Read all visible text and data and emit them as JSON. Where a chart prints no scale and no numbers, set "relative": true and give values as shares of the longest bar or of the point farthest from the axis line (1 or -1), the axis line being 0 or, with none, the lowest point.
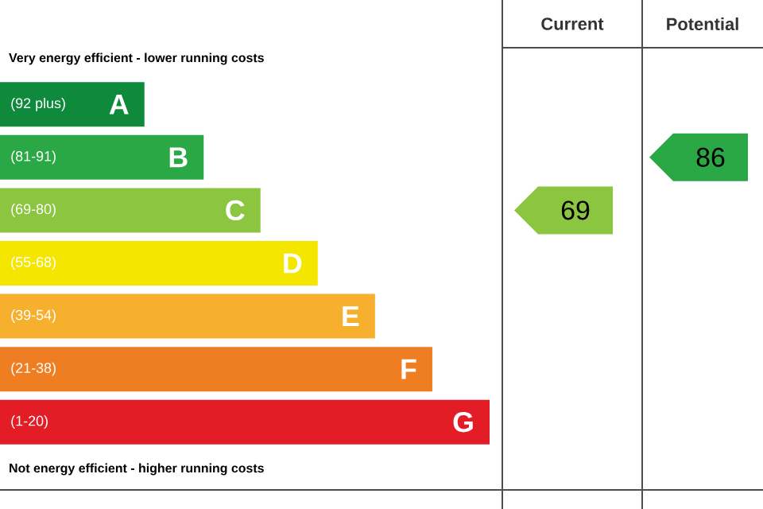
{
  "chart_data": {
    "type": "bar",
    "orientation": "horizontal",
    "relative": true,
    "categories": [
      "A",
      "B",
      "C",
      "D",
      "E",
      "F",
      "G"
    ],
    "values": [
      0.295,
      0.416,
      0.532,
      0.649,
      0.766,
      0.883,
      1
    ],
    "colors": [
      "#0f8a3c",
      "#2aa845",
      "#8cc540",
      "#f5e600",
      "#f7b02d",
      "#ef7d22",
      "#e31d25"
    ],
    "annotations": [
      "Very energy efficient - lower running costs",
      "Not energy efficient - higher running costs",
      "Current",
      "Potential",
      "(92 plus)",
      "(81-91)",
      "(69-80)",
      "(55-68)",
      "(39-54)",
      "(21-38)",
      "(1-20)",
      "69",
      "86"
    ]
  }
}
